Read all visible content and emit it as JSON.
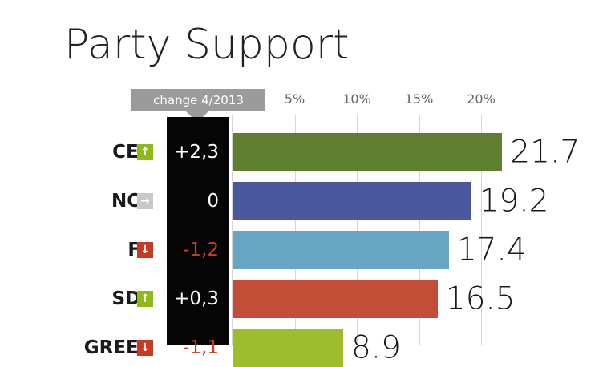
{
  "chart_data": {
    "type": "bar",
    "orientation": "horizontal",
    "title": "Party Support",
    "change_header": "change 4/2013",
    "x_ticks": [
      "5%",
      "10%",
      "15%",
      "20%"
    ],
    "x_tick_values": [
      5,
      10,
      15,
      20
    ],
    "xlim": [
      0,
      23
    ],
    "categories": [
      "CEN",
      "NCP",
      "FP",
      "SDP",
      "GREEN"
    ],
    "values": [
      21.7,
      19.2,
      17.4,
      16.5,
      8.9
    ],
    "value_labels": [
      "21.7",
      "19.2",
      "17.4",
      "16.5",
      "8.9"
    ],
    "changes": [
      "+2,3",
      "0",
      "-1,2",
      "+0,3",
      "-1,1"
    ],
    "trend": [
      "up",
      "flat",
      "down",
      "up",
      "down"
    ],
    "colors": [
      "#5f7e30",
      "#4a58a0",
      "#66a6c3",
      "#c24e38",
      "#9ebc2e"
    ]
  },
  "trend_colors": {
    "up": "#8fb81a",
    "flat": "#c8c8c8",
    "down": "#c43a22"
  },
  "change_colors": {
    "up": "#ffffff",
    "flat": "#ffffff",
    "down": "#d0391f"
  },
  "trend_icons": {
    "up": "↑",
    "flat": "→",
    "down": "↓"
  }
}
